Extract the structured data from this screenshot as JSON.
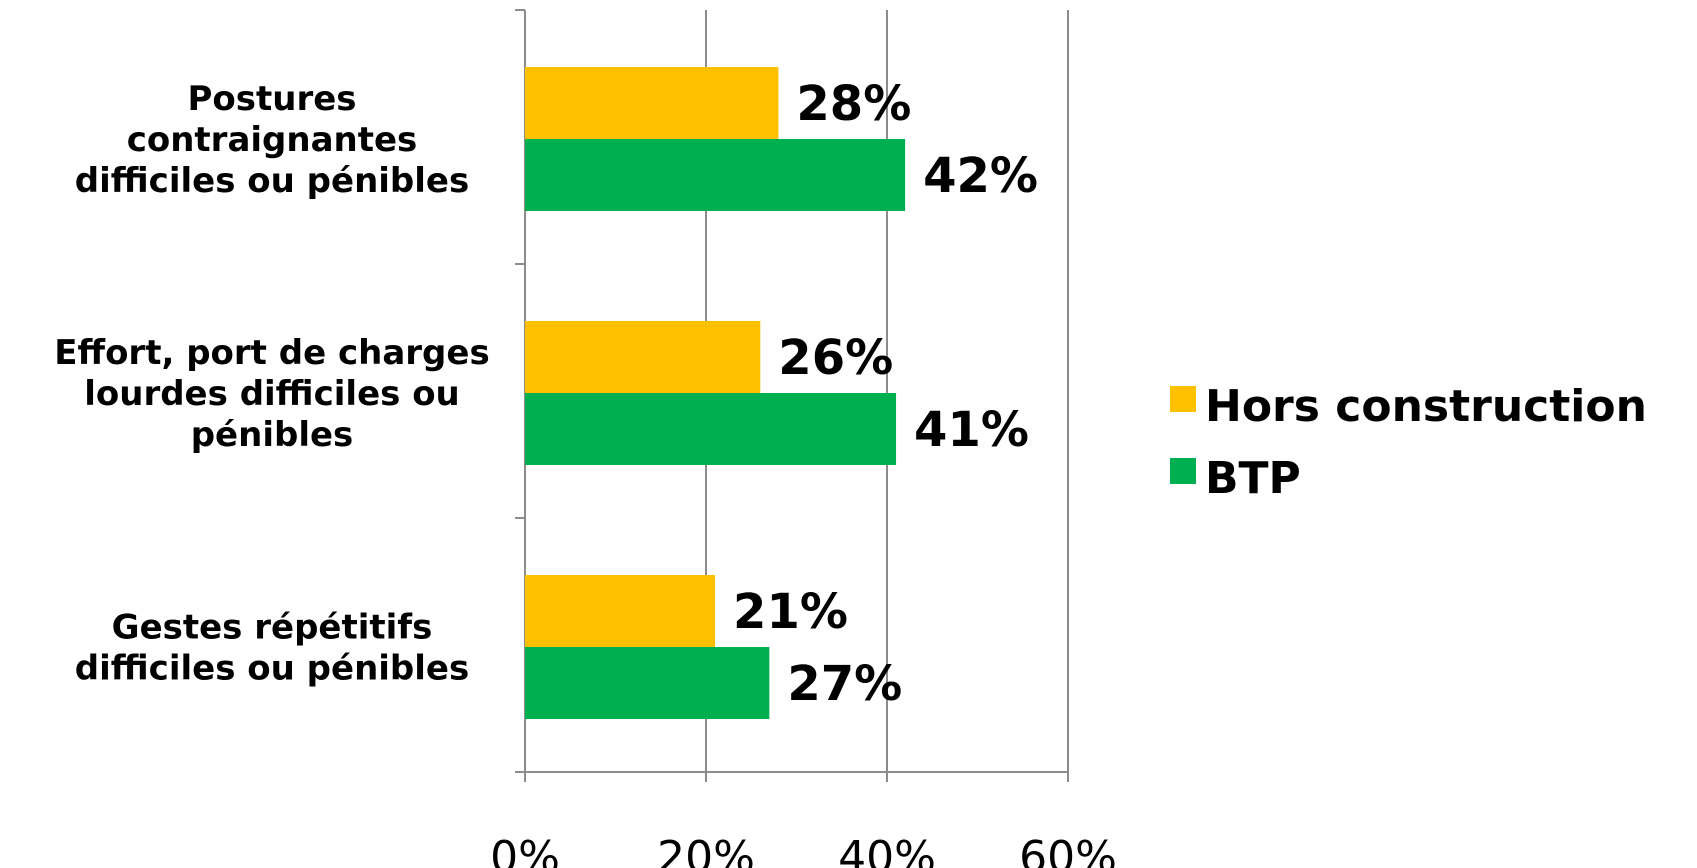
{
  "chart_data": {
    "type": "bar",
    "orientation": "horizontal",
    "categories": [
      [
        "Postures",
        "contraignantes",
        "difficiles ou pénibles"
      ],
      [
        "Effort, port de charges",
        "lourdes difficiles ou",
        "pénibles"
      ],
      [
        "Gestes répétitifs",
        "difficiles ou pénibles"
      ]
    ],
    "series": [
      {
        "name": "Hors construction",
        "color": "#FFC000",
        "values": [
          28,
          26,
          21
        ],
        "labels": [
          "28%",
          "26%",
          "21%"
        ]
      },
      {
        "name": "BTP",
        "color": "#00B050",
        "values": [
          42,
          41,
          27
        ],
        "labels": [
          "42%",
          "41%",
          "27%"
        ]
      }
    ],
    "xlim": [
      0,
      60
    ],
    "xticks": [
      0,
      20,
      40,
      60
    ],
    "xtick_labels": [
      "0%",
      "20%",
      "40%",
      "60%"
    ],
    "grid": "vertical",
    "legend": "right",
    "title": "",
    "xlabel": "",
    "ylabel": ""
  }
}
